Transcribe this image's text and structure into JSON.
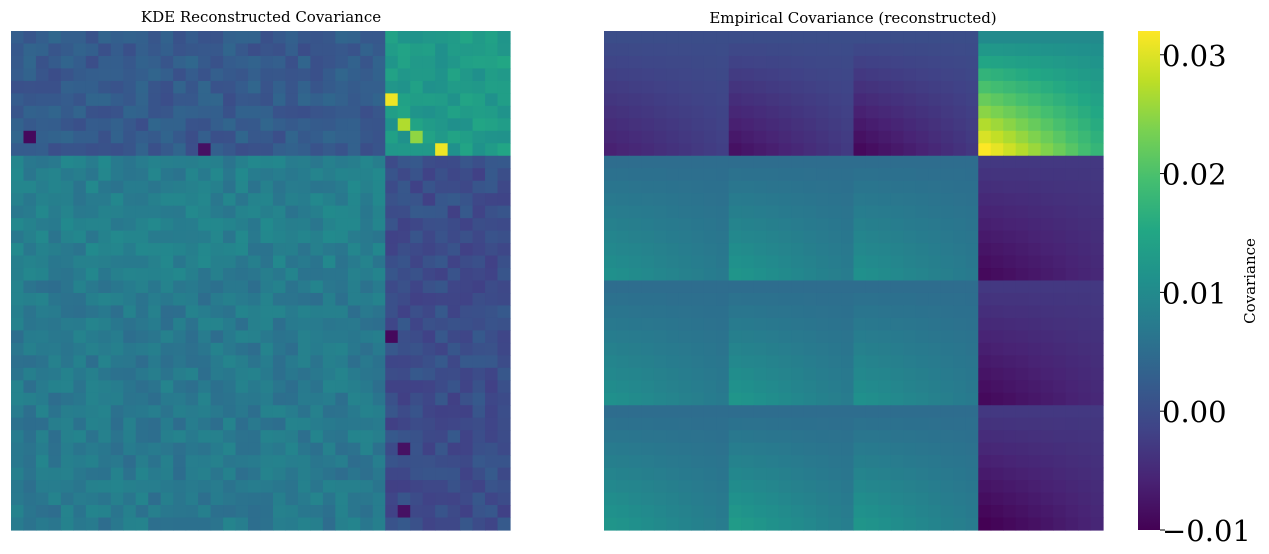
{
  "chart_data": [
    {
      "type": "heatmap",
      "title": "KDE Reconstructed Covariance",
      "xlabel": "",
      "ylabel": "",
      "grid": false,
      "size": [
        40,
        40
      ],
      "block_size": 10,
      "num_blocks": 4,
      "colorscale": "viridis",
      "color_range": [
        -0.01,
        0.032
      ],
      "block_means": [
        [
          0.002,
          0.002,
          0.002,
          0.013
        ],
        [
          0.008,
          0.008,
          0.008,
          0.0
        ],
        [
          0.007,
          0.007,
          0.007,
          0.0
        ],
        [
          0.007,
          0.007,
          0.007,
          0.0
        ]
      ],
      "notable_cells": [
        {
          "row": 5,
          "col": 30,
          "value": 0.031
        },
        {
          "row": 7,
          "col": 31,
          "value": 0.027
        },
        {
          "row": 8,
          "col": 32,
          "value": 0.025
        },
        {
          "row": 9,
          "col": 34,
          "value": 0.031
        },
        {
          "row": 8,
          "col": 1,
          "value": -0.009
        },
        {
          "row": 9,
          "col": 15,
          "value": -0.008
        },
        {
          "row": 24,
          "col": 30,
          "value": -0.009
        },
        {
          "row": 33,
          "col": 31,
          "value": -0.008
        },
        {
          "row": 38,
          "col": 31,
          "value": -0.008
        }
      ]
    },
    {
      "type": "heatmap",
      "title": "Empirical Covariance (reconstructed)",
      "xlabel": "",
      "ylabel": "",
      "grid": false,
      "size": [
        40,
        40
      ],
      "block_size": 10,
      "num_blocks": 4,
      "colorscale": "viridis",
      "color_range": [
        -0.01,
        0.032
      ],
      "block_ranges": [
        [
          [
            0.0,
            -0.006
          ],
          [
            0.0,
            -0.008
          ],
          [
            0.0,
            -0.009
          ],
          [
            0.01,
            0.032
          ]
        ],
        [
          [
            0.005,
            0.011
          ],
          [
            0.005,
            0.012
          ],
          [
            0.005,
            0.011
          ],
          [
            -0.003,
            -0.009
          ]
        ],
        [
          [
            0.005,
            0.011
          ],
          [
            0.005,
            0.012
          ],
          [
            0.005,
            0.011
          ],
          [
            -0.003,
            -0.009
          ]
        ],
        [
          [
            0.005,
            0.012
          ],
          [
            0.005,
            0.013
          ],
          [
            0.005,
            0.012
          ],
          [
            -0.003,
            -0.01
          ]
        ]
      ]
    }
  ],
  "colorbar": {
    "label": "Covariance",
    "min": -0.01,
    "max": 0.032,
    "ticks": [
      {
        "value": 0.03,
        "label": "0.03"
      },
      {
        "value": 0.02,
        "label": "0.02"
      },
      {
        "value": 0.01,
        "label": "0.01"
      },
      {
        "value": 0.0,
        "label": "0.00"
      },
      {
        "value": -0.01,
        "label": "−0.01"
      }
    ]
  }
}
